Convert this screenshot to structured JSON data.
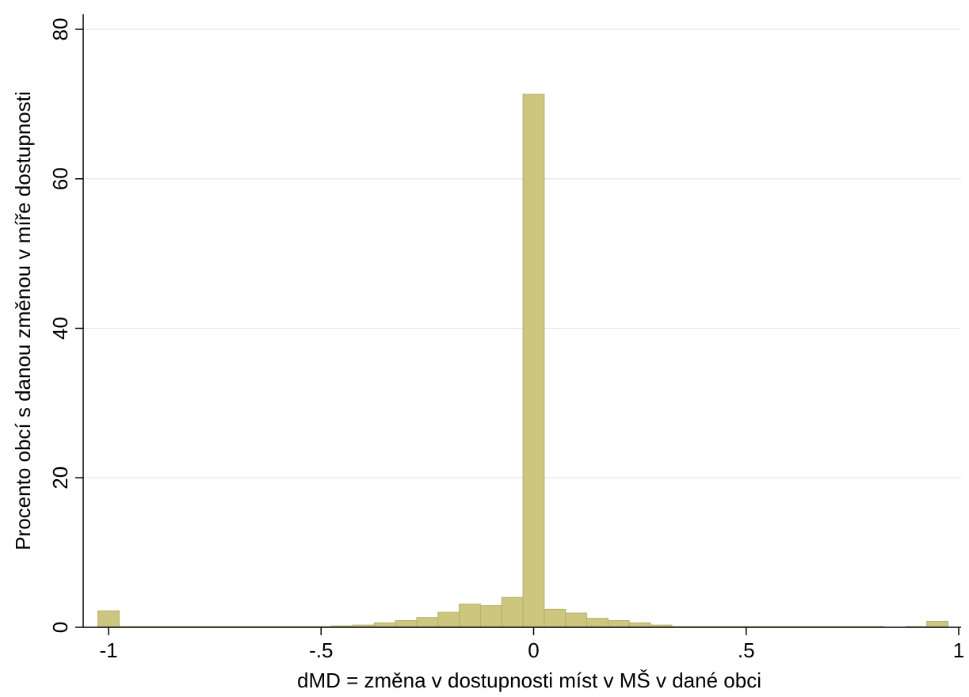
{
  "chart_data": {
    "type": "bar",
    "title": "",
    "xlabel": "dMD = změna v dostupnosti míst v MŠ v dané obci",
    "ylabel": "Procento obcí s danou změnou v míře dostupnosti",
    "xlim": [
      -1.05,
      1.0
    ],
    "ylim": [
      0,
      80
    ],
    "grid": true,
    "bar_color": "#cdc67e",
    "bar_edge_color": "#b8b06a",
    "grid_color": "#e6e6e6",
    "bin_width": 0.05,
    "x_ticks": [
      {
        "value": -1,
        "label": "-1"
      },
      {
        "value": -0.5,
        "label": "-.5"
      },
      {
        "value": 0,
        "label": "0"
      },
      {
        "value": 0.5,
        "label": ".5"
      },
      {
        "value": 1,
        "label": "1"
      }
    ],
    "y_ticks": [
      {
        "value": 0,
        "label": "0"
      },
      {
        "value": 20,
        "label": "20"
      },
      {
        "value": 40,
        "label": "40"
      },
      {
        "value": 60,
        "label": "60"
      },
      {
        "value": 80,
        "label": "80"
      }
    ],
    "bins": [
      {
        "x": -1.0,
        "value": 2.2
      },
      {
        "x": -0.95,
        "value": 0.1
      },
      {
        "x": -0.9,
        "value": 0.1
      },
      {
        "x": -0.85,
        "value": 0.1
      },
      {
        "x": -0.8,
        "value": 0.1
      },
      {
        "x": -0.75,
        "value": 0.1
      },
      {
        "x": -0.7,
        "value": 0.1
      },
      {
        "x": -0.65,
        "value": 0.1
      },
      {
        "x": -0.6,
        "value": 0.1
      },
      {
        "x": -0.55,
        "value": 0.1
      },
      {
        "x": -0.5,
        "value": 0.1
      },
      {
        "x": -0.45,
        "value": 0.2
      },
      {
        "x": -0.4,
        "value": 0.3
      },
      {
        "x": -0.35,
        "value": 0.6
      },
      {
        "x": -0.3,
        "value": 0.9
      },
      {
        "x": -0.25,
        "value": 1.3
      },
      {
        "x": -0.2,
        "value": 2.0
      },
      {
        "x": -0.15,
        "value": 3.1
      },
      {
        "x": -0.1,
        "value": 2.9
      },
      {
        "x": -0.05,
        "value": 4.0
      },
      {
        "x": 0.0,
        "value": 71.3
      },
      {
        "x": 0.05,
        "value": 2.4
      },
      {
        "x": 0.1,
        "value": 1.9
      },
      {
        "x": 0.15,
        "value": 1.2
      },
      {
        "x": 0.2,
        "value": 0.9
      },
      {
        "x": 0.25,
        "value": 0.6
      },
      {
        "x": 0.3,
        "value": 0.3
      },
      {
        "x": 0.35,
        "value": 0.1
      },
      {
        "x": 0.4,
        "value": 0.1
      },
      {
        "x": 0.45,
        "value": 0.1
      },
      {
        "x": 0.5,
        "value": 0.1
      },
      {
        "x": 0.55,
        "value": 0.1
      },
      {
        "x": 0.6,
        "value": 0.1
      },
      {
        "x": 0.65,
        "value": 0.1
      },
      {
        "x": 0.7,
        "value": 0.1
      },
      {
        "x": 0.75,
        "value": 0.1
      },
      {
        "x": 0.8,
        "value": 0.1
      },
      {
        "x": 0.85,
        "value": 0.0
      },
      {
        "x": 0.9,
        "value": 0.1
      },
      {
        "x": 0.95,
        "value": 0.8
      }
    ]
  }
}
